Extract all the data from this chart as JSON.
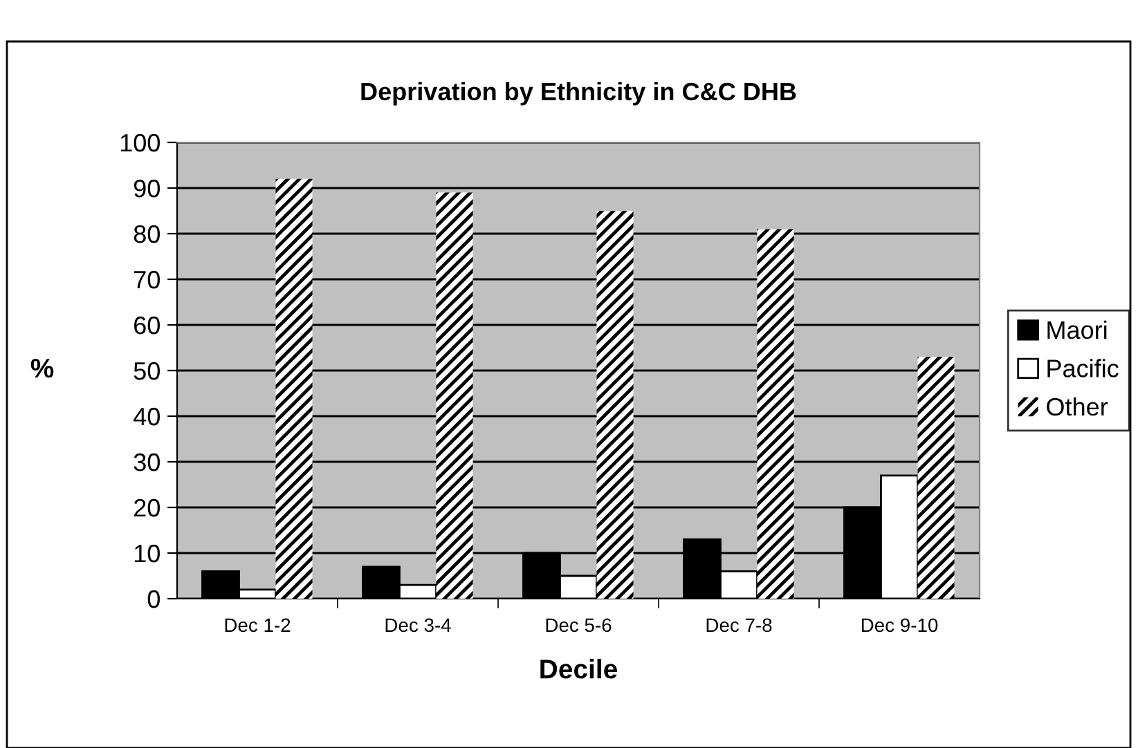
{
  "chart_data": {
    "type": "bar",
    "title": "Deprivation by Ethnicity in C&C DHB",
    "xlabel": "Decile",
    "ylabel": "%",
    "categories": [
      "Dec 1-2",
      "Dec 3-4",
      "Dec 5-6",
      "Dec 7-8",
      "Dec 9-10"
    ],
    "series": [
      {
        "name": "Maori",
        "color": "#000000",
        "values": [
          6,
          7,
          10,
          13,
          20
        ]
      },
      {
        "name": "Pacific",
        "color": "#ffffff",
        "values": [
          2,
          3,
          5,
          6,
          27
        ]
      },
      {
        "name": "Other",
        "color": "#000000",
        "values": [
          92,
          89,
          85,
          81,
          53
        ]
      }
    ],
    "ylim": [
      0,
      100
    ],
    "yticks": [
      0,
      10,
      20,
      30,
      40,
      50,
      60,
      70,
      80,
      90,
      100
    ],
    "grid": "y",
    "legend": "right"
  }
}
